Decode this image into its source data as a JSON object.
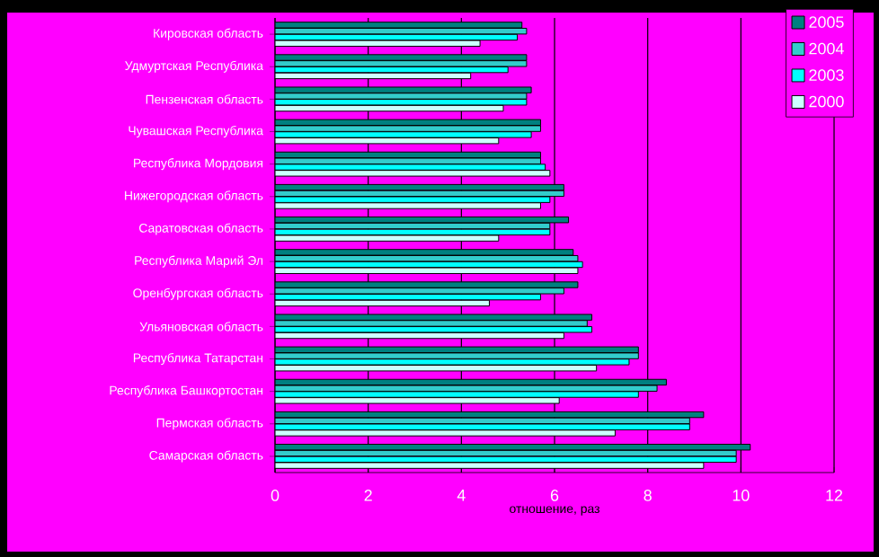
{
  "chart_data": {
    "type": "bar",
    "orientation": "horizontal",
    "xlabel": "отношение, раз",
    "categories": [
      "Кировская область",
      "Удмуртская Республика",
      "Пензенская область",
      "Чувашская Республика",
      "Республика Мордовия",
      "Нижегородская область",
      "Саратовская область",
      "Республика Марий Эл",
      "Оренбургская область",
      "Ульяновская область",
      "Республика Татарстан",
      "Республика Башкортостан",
      "Пермская область",
      "Самарская область"
    ],
    "series": [
      {
        "name": "2005",
        "color": "#008080",
        "values": [
          5.3,
          5.4,
          5.5,
          5.7,
          5.7,
          6.2,
          6.3,
          6.4,
          6.5,
          6.8,
          7.8,
          8.4,
          9.2,
          10.2
        ]
      },
      {
        "name": "2004",
        "color": "#33cccc",
        "values": [
          5.4,
          5.4,
          5.4,
          5.7,
          5.7,
          6.2,
          5.9,
          6.5,
          6.2,
          6.7,
          7.8,
          8.2,
          8.9,
          9.9
        ]
      },
      {
        "name": "2003",
        "color": "#00ffff",
        "values": [
          5.2,
          5.0,
          5.4,
          5.5,
          5.8,
          5.9,
          5.9,
          6.6,
          5.7,
          6.8,
          7.6,
          7.8,
          8.9,
          9.9
        ]
      },
      {
        "name": "2000",
        "color": "#ccffff",
        "values": [
          4.4,
          4.2,
          4.9,
          4.8,
          5.9,
          5.7,
          4.8,
          6.5,
          4.6,
          6.2,
          6.9,
          6.1,
          7.3,
          9.2
        ]
      }
    ],
    "xlim": [
      0,
      12
    ],
    "xticks": [
      0,
      2,
      4,
      6,
      8,
      10,
      12
    ],
    "grid": "x",
    "legend": "top right"
  }
}
